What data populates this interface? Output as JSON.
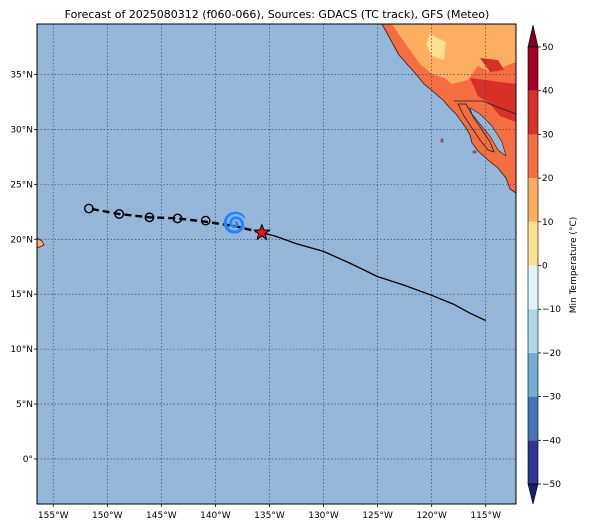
{
  "title": "Forecast of 2025080312 (f060-066), Sources: GDACS (TC track), GFS (Meteo)",
  "map": {
    "lon_range": [
      -156.5,
      -112.2
    ],
    "lat_range": [
      -4.1,
      39.6
    ],
    "lon_ticks": [
      {
        "value": -155,
        "label": "155°W"
      },
      {
        "value": -150,
        "label": "150°W"
      },
      {
        "value": -145,
        "label": "145°W"
      },
      {
        "value": -140,
        "label": "140°W"
      },
      {
        "value": -135,
        "label": "135°W"
      },
      {
        "value": -130,
        "label": "130°W"
      },
      {
        "value": -125,
        "label": "125°W"
      },
      {
        "value": -120,
        "label": "120°W"
      },
      {
        "value": -115,
        "label": "115°W"
      }
    ],
    "lat_ticks": [
      {
        "value": 0,
        "label": "0°"
      },
      {
        "value": 5,
        "label": "5°N"
      },
      {
        "value": 10,
        "label": "10°N"
      },
      {
        "value": 15,
        "label": "15°N"
      },
      {
        "value": 20,
        "label": "20°N"
      },
      {
        "value": 25,
        "label": "25°N"
      },
      {
        "value": 30,
        "label": "30°N"
      },
      {
        "value": 35,
        "label": "35°N"
      }
    ],
    "ocean_color": "#93b6d9",
    "grid": true
  },
  "track": {
    "past_track": [
      [
        -115.0,
        12.6
      ],
      [
        -116.5,
        13.3
      ],
      [
        -118.0,
        14.1
      ],
      [
        -120.0,
        14.9
      ],
      [
        -122.5,
        15.8
      ],
      [
        -125.0,
        16.6
      ],
      [
        -127.5,
        17.8
      ],
      [
        -130.0,
        18.9
      ],
      [
        -132.5,
        19.6
      ],
      [
        -134.5,
        20.3
      ],
      [
        -135.7,
        20.6
      ]
    ],
    "current_position": [
      -135.7,
      20.6
    ],
    "current_marker": "red-star",
    "forecast_track": [
      [
        -135.7,
        20.6
      ],
      [
        -138.2,
        21.2
      ],
      [
        -140.9,
        21.6
      ],
      [
        -143.5,
        21.9
      ],
      [
        -146.1,
        22.0
      ],
      [
        -148.9,
        22.3
      ],
      [
        -151.7,
        22.8
      ]
    ],
    "forecast_points": [
      [
        -140.9,
        21.7
      ],
      [
        -143.5,
        21.9
      ],
      [
        -146.1,
        22.0
      ],
      [
        -148.9,
        22.3
      ],
      [
        -151.7,
        22.8
      ]
    ],
    "storm_symbol": [
      -138.2,
      21.4
    ]
  },
  "colorbar": {
    "label": "Min Temperature (°C)",
    "ticks": [
      "50",
      "40",
      "30",
      "20",
      "10",
      "0",
      "−10",
      "−20",
      "−30",
      "−40",
      "−50"
    ],
    "levels": [
      -50,
      -40,
      -30,
      -20,
      -10,
      0,
      10,
      20,
      30,
      40,
      50
    ],
    "colors": [
      "#313695",
      "#4575b4",
      "#74add1",
      "#abd9e9",
      "#e0f3f8",
      "#fee090",
      "#fdae61",
      "#f46d43",
      "#d73027",
      "#a50026"
    ],
    "under_color": "#1e1e6e",
    "over_color": "#7f0026"
  },
  "chart_data": {
    "type": "scatter",
    "title": "Forecast of 2025080312 (f060-066), Sources: GDACS (TC track), GFS (Meteo)",
    "xlabel": "",
    "ylabel": "",
    "xlim": [
      -156.5,
      -112.2
    ],
    "ylim": [
      -4.1,
      39.6
    ],
    "series": [
      {
        "values": [
          [
            -115.0,
            12.6
          ],
          [
            -120.0,
            14.9
          ],
          [
            -125.0,
            16.6
          ],
          [
            -130.0,
            18.9
          ],
          [
            -135.7,
            20.6
          ]
        ]
      },
      {
        "values": [
          [
            -138.2,
            21.2
          ],
          [
            -140.9,
            21.6
          ],
          [
            -143.5,
            21.9
          ],
          [
            -146.1,
            22.0
          ],
          [
            -148.9,
            22.3
          ],
          [
            -151.7,
            22.8
          ]
        ]
      }
    ]
  }
}
